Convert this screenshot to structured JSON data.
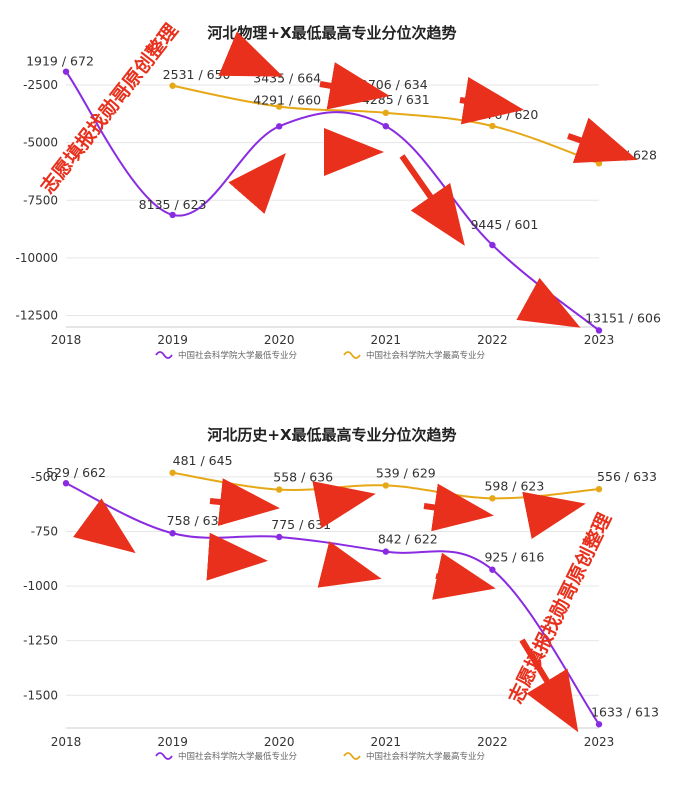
{
  "watermark": "志愿填报找勋哥原创整理",
  "colors": {
    "min": "#8a2be2",
    "max": "#e6a817",
    "arrow": "#e8301c",
    "grid": "#e6e6e6"
  },
  "chart_data": [
    {
      "type": "line",
      "title": "河北物理+X最低最高专业分位次趋势",
      "x": [
        "2018",
        "2019",
        "2020",
        "2021",
        "2022",
        "2023"
      ],
      "ylim": [
        -13000,
        -1500
      ],
      "yticks": [
        -2500,
        -5000,
        -7500,
        -10000,
        -12500
      ],
      "legend": [
        "中国社会科学院大学最低专业分",
        "中国社会科学院大学最高专业分"
      ],
      "series": [
        {
          "name": "中国社会科学院大学最低专业分",
          "color": "#8a2be2",
          "values": [
            -1919,
            -8135,
            -4291,
            -4285,
            -9445,
            -13151
          ],
          "labels": [
            "1919 / 672",
            "8135 / 623",
            "4291 / 660",
            "4285 / 631",
            "9445 / 601",
            "13151 / 606"
          ]
        },
        {
          "name": "中国社会科学院大学最高专业分",
          "color": "#e6a817",
          "values": [
            null,
            -2531,
            -3435,
            -3706,
            -4276,
            -5897
          ],
          "labels": [
            "",
            "2531 / 650",
            "3435 / 664",
            "3706 / 634",
            "4276 / 620",
            "5897 / 628"
          ]
        }
      ]
    },
    {
      "type": "line",
      "title": "河北历史+X最低最高专业分位次趋势",
      "x": [
        "2018",
        "2019",
        "2020",
        "2021",
        "2022",
        "2023"
      ],
      "ylim": [
        -1650,
        -450
      ],
      "yticks": [
        -500,
        -750,
        -1000,
        -1250,
        -1500
      ],
      "legend": [
        "中国社会科学院大学最低专业分",
        "中国社会科学院大学最高专业分"
      ],
      "series": [
        {
          "name": "中国社会科学院大学最低专业分",
          "color": "#8a2be2",
          "values": [
            -529,
            -758,
            -775,
            -842,
            -925,
            -1633
          ],
          "labels": [
            "529 / 662",
            "758 / 637",
            "775 / 631",
            "842 / 622",
            "925 / 616",
            "1633 / 613"
          ]
        },
        {
          "name": "中国社会科学院大学最高专业分",
          "color": "#e6a817",
          "values": [
            null,
            -481,
            -558,
            -539,
            -598,
            -556
          ],
          "labels": [
            "",
            "481 / 645",
            "558 / 636",
            "539 / 629",
            "598 / 623",
            "556 / 633"
          ]
        }
      ]
    }
  ]
}
